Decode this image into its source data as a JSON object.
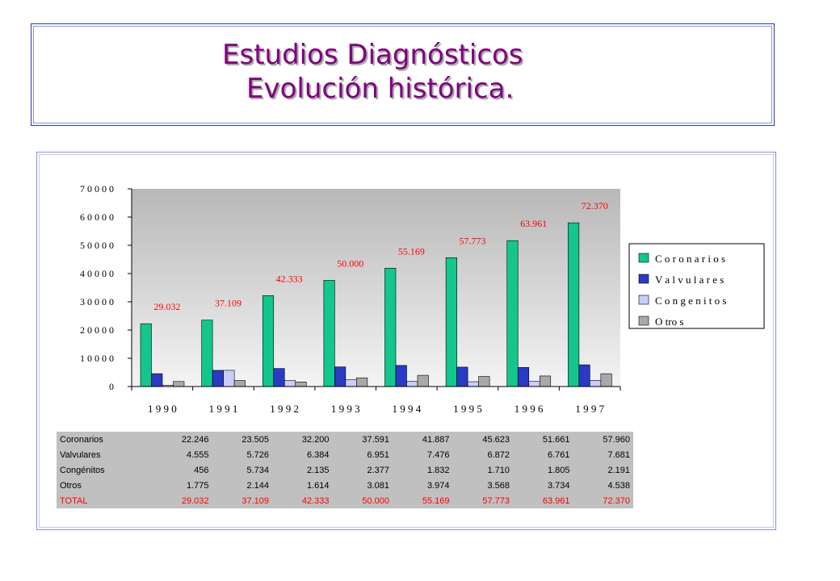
{
  "title": {
    "line1": "Estudios Diagnósticos",
    "line2": "Evolución histórica."
  },
  "colors": {
    "title": "#800080",
    "total_label": "#ff0000",
    "plot_bg_top": "#b8b8b8",
    "plot_bg_bottom": "#f4f4f4"
  },
  "chart_data": {
    "type": "bar",
    "categories": [
      "1 9 9 0",
      "1 9 9 1",
      "1 9 9 2",
      "1 9 9 3",
      "1 9 9 4",
      "1 9 9 5",
      "1 9 9 6",
      "1 9 9 7"
    ],
    "series": [
      {
        "name": "C o r o n a r i o s",
        "color": "#13c68d",
        "values": [
          22246,
          23505,
          32200,
          37591,
          41887,
          45623,
          51661,
          57960
        ]
      },
      {
        "name": "V a l v u l a r e s",
        "color": "#2b3ac4",
        "values": [
          4555,
          5726,
          6384,
          6951,
          7476,
          6872,
          6761,
          7681
        ]
      },
      {
        "name": "C o n g e n i t o s",
        "color": "#c9cdfa",
        "values": [
          456,
          5734,
          2135,
          2377,
          1832,
          1710,
          1805,
          2191
        ]
      },
      {
        "name": "O tro s",
        "color": "#a9a9a9",
        "values": [
          1775,
          2144,
          1614,
          3081,
          3974,
          3568,
          3734,
          4538
        ]
      }
    ],
    "total_labels": [
      "29.032",
      "37.109",
      "42.333",
      "50.000",
      "55.169",
      "57.773",
      "63.961",
      "72.370"
    ],
    "y_ticks": [
      "0",
      "1 0 0 0 0",
      "2 0 0 0 0",
      "3 0 0 0 0",
      "4 0 0 0 0",
      "5 0 0 0 0",
      "6 0 0 0 0",
      "7 0 0 0 0"
    ],
    "ylim": [
      0,
      70000
    ],
    "grid": false,
    "legend_position": "right"
  },
  "table": {
    "rows": [
      {
        "label": "Coronarios",
        "values": [
          "22.246",
          "23.505",
          "32.200",
          "37.591",
          "41.887",
          "45.623",
          "51.661",
          "57.960"
        ]
      },
      {
        "label": "Valvulares",
        "values": [
          "4.555",
          "5.726",
          "6.384",
          "6.951",
          "7.476",
          "6.872",
          "6.761",
          "7.681"
        ]
      },
      {
        "label": "Congénitos",
        "values": [
          "456",
          "5.734",
          "2.135",
          "2.377",
          "1.832",
          "1.710",
          "1.805",
          "2.191"
        ]
      },
      {
        "label": "Otros",
        "values": [
          "1.775",
          "2.144",
          "1.614",
          "3.081",
          "3.974",
          "3.568",
          "3.734",
          "4.538"
        ]
      },
      {
        "label": "TOTAL",
        "values": [
          "29.032",
          "37.109",
          "42.333",
          "50.000",
          "55.169",
          "57.773",
          "63.961",
          "72.370"
        ]
      }
    ]
  }
}
